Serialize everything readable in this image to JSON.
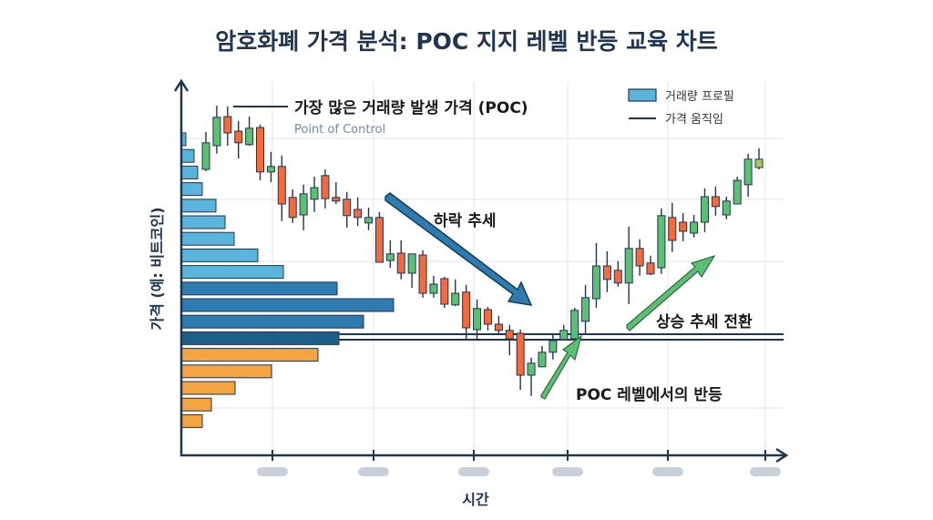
{
  "chart_data": {
    "type": "candlestick",
    "title": "암호화폐 가격 분석: POC 지지 레벨 반등 교육 차트",
    "xlabel": "시간",
    "ylabel": "가격 (예: 비트코인)",
    "ylim": [
      0,
      100
    ],
    "grid": true,
    "legend": {
      "placement": "top-right",
      "items": [
        {
          "label": "거래량 프로필",
          "type": "box",
          "color": "#5ab4dc"
        },
        {
          "label": "가격 움직임",
          "type": "line",
          "color": "#1f3550"
        }
      ]
    },
    "annotations": {
      "poc_label": "가장 많은 거래량 발생 가격 (POC)",
      "poc_sub": "Point of Control",
      "downtrend": "하락 추세",
      "reversal": "상승 추세 전환",
      "bounce": "POC 레벨에서의 반등"
    },
    "poc_price": 32.5,
    "volume_profile": {
      "values": [
        5,
        14,
        18,
        23,
        38,
        48,
        58,
        84,
        112,
        171,
        233,
        200,
        173,
        150,
        99,
        59,
        33,
        23
      ],
      "colors": [
        "#5ab4dc",
        "#5ab4dc",
        "#5ab4dc",
        "#5ab4dc",
        "#5ab4dc",
        "#5ab4dc",
        "#5ab4dc",
        "#5ab4dc",
        "#5ab4dc",
        "#2e7bb0",
        "#2e7bb0",
        "#2e7bb0",
        "#1e5f86",
        "#f5a442",
        "#f5a442",
        "#f5a442",
        "#f5a442",
        "#f5a442"
      ]
    },
    "candles": [
      [
        78.5,
        88.8,
        78,
        85.8
      ],
      [
        85,
        96,
        82.8,
        92.8
      ],
      [
        93,
        95.8,
        85,
        88.5
      ],
      [
        89,
        91.8,
        81.5,
        85.8
      ],
      [
        85.3,
        93,
        85,
        89.8
      ],
      [
        90,
        90.8,
        75.5,
        77.8
      ],
      [
        77.8,
        83.3,
        75,
        79.3
      ],
      [
        79.3,
        82.3,
        64.3,
        69
      ],
      [
        70.8,
        73,
        63.8,
        65.3
      ],
      [
        66,
        74.3,
        61.8,
        71.8
      ],
      [
        70.3,
        76.5,
        66.8,
        73.5
      ],
      [
        76.8,
        78.5,
        67.8,
        70.5
      ],
      [
        70.8,
        75,
        69,
        69.8
      ],
      [
        70.3,
        72.3,
        62.5,
        65.8
      ],
      [
        67.5,
        70.8,
        63,
        65.3
      ],
      [
        63.8,
        68,
        61.8,
        65.3
      ],
      [
        65.3,
        66.8,
        53,
        53
      ],
      [
        53.5,
        59,
        51.5,
        55.3
      ],
      [
        55.5,
        59,
        48.3,
        50
      ],
      [
        50,
        55.3,
        46,
        55.3
      ],
      [
        55,
        56.3,
        43.3,
        44.5
      ],
      [
        44.5,
        49.3,
        43.3,
        47
      ],
      [
        48.5,
        49,
        40.5,
        41.5
      ],
      [
        41.3,
        48.3,
        41,
        44.5
      ],
      [
        44.8,
        46.8,
        32,
        35
      ],
      [
        34.5,
        42.8,
        32,
        40.3
      ],
      [
        40,
        40.8,
        34.3,
        36
      ],
      [
        36,
        38.3,
        33,
        34.3
      ],
      [
        34.3,
        35.8,
        27.5,
        32
      ],
      [
        33.5,
        34.5,
        18,
        22
      ],
      [
        22,
        26.8,
        16.3,
        25.3
      ],
      [
        24.3,
        30,
        24.3,
        28.3
      ],
      [
        28.3,
        33.3,
        26.3,
        31.5
      ],
      [
        31.8,
        35.8,
        31.5,
        34.3
      ],
      [
        32,
        40.5,
        32,
        39.8
      ],
      [
        36.8,
        46.8,
        33.3,
        43.3
      ],
      [
        43,
        58.3,
        40.5,
        52
      ],
      [
        52,
        56,
        44.8,
        48.3
      ],
      [
        50.8,
        53.3,
        46.3,
        47.3
      ],
      [
        47.3,
        62.8,
        41.5,
        56.8
      ],
      [
        56.8,
        59.3,
        49.3,
        52
      ],
      [
        52.8,
        54.8,
        49.5,
        49.8
      ],
      [
        51.5,
        67.8,
        49.8,
        65.8
      ],
      [
        65.3,
        69.3,
        55.8,
        59
      ],
      [
        64,
        66.5,
        58.8,
        61.5
      ],
      [
        61,
        66,
        59.8,
        64
      ],
      [
        64,
        73.3,
        61.3,
        71
      ],
      [
        71,
        73.8,
        65.8,
        68.3
      ],
      [
        66,
        71,
        64.8,
        69.8
      ],
      [
        69,
        76.5,
        69,
        75.5
      ],
      [
        74.3,
        82.8,
        71,
        81.3
      ],
      [
        79,
        84.3,
        78.5,
        81.3
      ]
    ],
    "colors": {
      "up": "#5cbf74",
      "down": "#f26a3d",
      "last": "#a8c75a",
      "down_arrow": "#2e7bb0",
      "up_arrow": "#5cbf74",
      "axis": "#1f3550",
      "grid": "#e3ebf3",
      "tick_label": "#c8d0dc"
    }
  }
}
